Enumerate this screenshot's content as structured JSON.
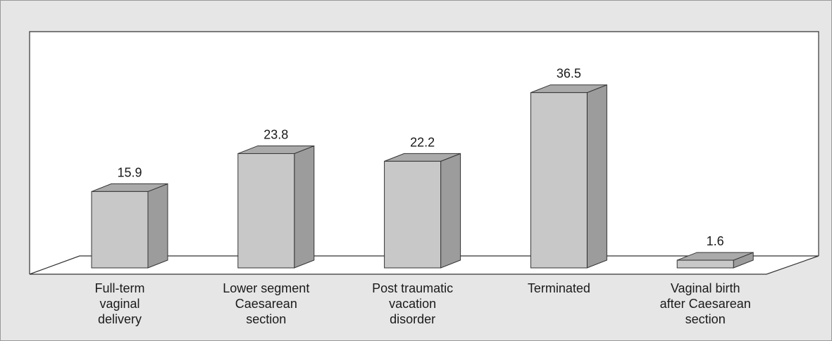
{
  "chart_data": {
    "type": "bar3d",
    "categories": [
      [
        "Full-term",
        "vaginal",
        "delivery"
      ],
      [
        "Lower segment",
        "Caesarean",
        "section"
      ],
      [
        "Post traumatic",
        "vacation",
        "disorder"
      ],
      [
        "Terminated"
      ],
      [
        "Vaginal birth",
        "after Caesarean",
        "section"
      ]
    ],
    "values": [
      15.9,
      23.8,
      22.2,
      36.5,
      1.6
    ],
    "color": "#c8c8c8"
  }
}
